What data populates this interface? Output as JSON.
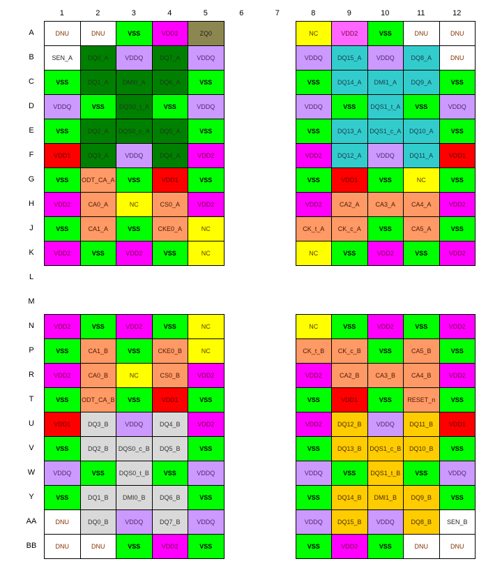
{
  "columns": [
    "1",
    "2",
    "3",
    "4",
    "5",
    "6",
    "7",
    "8",
    "9",
    "10",
    "11",
    "12"
  ],
  "pin_types": {
    "VSS": {
      "bg": "#00ff00",
      "fg": "#000000",
      "bold": true
    },
    "VDD1": {
      "bg": "#ff0000",
      "fg": "#6b0000"
    },
    "VDD2": {
      "bg": "#ff00ff",
      "fg": "#7a0040"
    },
    "VDD2_light": {
      "bg": "#ff66ff",
      "fg": "#7a0040"
    },
    "VDDQ": {
      "bg": "#cc99ff",
      "fg": "#4b2a6e"
    },
    "NC": {
      "bg": "#ffff00",
      "fg": "#5a3a00"
    },
    "DNU": {
      "bg": "#ffffff",
      "fg": "#803300"
    },
    "SEN": {
      "bg": "#ffffff",
      "fg": "#222222"
    },
    "ZQ": {
      "bg": "#8c8750",
      "fg": "#222222"
    },
    "CA": {
      "bg": "#ff9966",
      "fg": "#4a1a00"
    },
    "DQA_L": {
      "bg": "#008000",
      "fg": "#1a3a1a"
    },
    "DQA_R": {
      "bg": "#33cccc",
      "fg": "#1a3a4a"
    },
    "DQB_L": {
      "bg": "#d9d9d9",
      "fg": "#333333"
    },
    "DQB_R": {
      "bg": "#ffcc00",
      "fg": "#4a2a00"
    }
  },
  "rows": [
    {
      "label": "A",
      "left": [
        [
          "DNU",
          "DNU"
        ],
        [
          "DNU",
          "DNU"
        ],
        [
          "VSS",
          "VSS"
        ],
        [
          "VDD2",
          "VDD2"
        ],
        [
          "ZQ0",
          "ZQ"
        ]
      ],
      "right": [
        [
          "NC",
          "NC"
        ],
        [
          "VDD2",
          "VDD2_light"
        ],
        [
          "VSS",
          "VSS"
        ],
        [
          "DNU",
          "DNU"
        ],
        [
          "DNU",
          "DNU"
        ]
      ]
    },
    {
      "label": "B",
      "left": [
        [
          "SEN_A",
          "SEN"
        ],
        [
          "DQ0_A",
          "DQA_L"
        ],
        [
          "VDDQ",
          "VDDQ"
        ],
        [
          "DQ7_A",
          "DQA_L"
        ],
        [
          "VDDQ",
          "VDDQ"
        ]
      ],
      "right": [
        [
          "VDDQ",
          "VDDQ"
        ],
        [
          "DQ15_A",
          "DQA_R"
        ],
        [
          "VDDQ",
          "VDDQ"
        ],
        [
          "DQ8_A",
          "DQA_R"
        ],
        [
          "DNU",
          "DNU"
        ]
      ]
    },
    {
      "label": "C",
      "left": [
        [
          "VSS",
          "VSS"
        ],
        [
          "DQ1_A",
          "DQA_L"
        ],
        [
          "DMI0_A",
          "DQA_L"
        ],
        [
          "DQ6_A",
          "DQA_L"
        ],
        [
          "VSS",
          "VSS"
        ]
      ],
      "right": [
        [
          "VSS",
          "VSS"
        ],
        [
          "DQ14_A",
          "DQA_R"
        ],
        [
          "DMI1_A",
          "DQA_R"
        ],
        [
          "DQ9_A",
          "DQA_R"
        ],
        [
          "VSS",
          "VSS"
        ]
      ]
    },
    {
      "label": "D",
      "left": [
        [
          "VDDQ",
          "VDDQ"
        ],
        [
          "VSS",
          "VSS"
        ],
        [
          "DQS0_t_A",
          "DQA_L"
        ],
        [
          "VSS",
          "VSS"
        ],
        [
          "VDDQ",
          "VDDQ"
        ]
      ],
      "right": [
        [
          "VDDQ",
          "VDDQ"
        ],
        [
          "VSS",
          "VSS"
        ],
        [
          "DQS1_t_A",
          "DQA_R"
        ],
        [
          "VSS",
          "VSS"
        ],
        [
          "VDDQ",
          "VDDQ"
        ]
      ]
    },
    {
      "label": "E",
      "left": [
        [
          "VSS",
          "VSS"
        ],
        [
          "DQ2_A",
          "DQA_L"
        ],
        [
          "DQS0_c_A",
          "DQA_L"
        ],
        [
          "DQ5_A",
          "DQA_L"
        ],
        [
          "VSS",
          "VSS"
        ]
      ],
      "right": [
        [
          "VSS",
          "VSS"
        ],
        [
          "DQ13_A",
          "DQA_R"
        ],
        [
          "DQS1_c_A",
          "DQA_R"
        ],
        [
          "DQ10_A",
          "DQA_R"
        ],
        [
          "VSS",
          "VSS"
        ]
      ]
    },
    {
      "label": "F",
      "left": [
        [
          "VDD1",
          "VDD1"
        ],
        [
          "DQ3_A",
          "DQA_L"
        ],
        [
          "VDDQ",
          "VDDQ"
        ],
        [
          "DQ4_A",
          "DQA_L"
        ],
        [
          "VDD2",
          "VDD2"
        ]
      ],
      "right": [
        [
          "VDD2",
          "VDD2"
        ],
        [
          "DQ12_A",
          "DQA_R"
        ],
        [
          "VDDQ",
          "VDDQ"
        ],
        [
          "DQ11_A",
          "DQA_R"
        ],
        [
          "VDD1",
          "VDD1"
        ]
      ]
    },
    {
      "label": "G",
      "left": [
        [
          "VSS",
          "VSS"
        ],
        [
          "ODT_CA_A",
          "CA"
        ],
        [
          "VSS",
          "VSS"
        ],
        [
          "VDD1",
          "VDD1"
        ],
        [
          "VSS",
          "VSS"
        ]
      ],
      "right": [
        [
          "VSS",
          "VSS"
        ],
        [
          "VDD1",
          "VDD1"
        ],
        [
          "VSS",
          "VSS"
        ],
        [
          "NC",
          "NC"
        ],
        [
          "VSS",
          "VSS"
        ]
      ]
    },
    {
      "label": "H",
      "left": [
        [
          "VDD2",
          "VDD2"
        ],
        [
          "CA0_A",
          "CA"
        ],
        [
          "NC",
          "NC"
        ],
        [
          "CS0_A",
          "CA"
        ],
        [
          "VDD2",
          "VDD2"
        ]
      ],
      "right": [
        [
          "VDD2",
          "VDD2"
        ],
        [
          "CA2_A",
          "CA"
        ],
        [
          "CA3_A",
          "CA"
        ],
        [
          "CA4_A",
          "CA"
        ],
        [
          "VDD2",
          "VDD2"
        ]
      ]
    },
    {
      "label": "J",
      "left": [
        [
          "VSS",
          "VSS"
        ],
        [
          "CA1_A",
          "CA"
        ],
        [
          "VSS",
          "VSS"
        ],
        [
          "CKE0_A",
          "CA"
        ],
        [
          "NC",
          "NC"
        ]
      ],
      "right": [
        [
          "CK_t_A",
          "CA"
        ],
        [
          "CK_c_A",
          "CA"
        ],
        [
          "VSS",
          "VSS"
        ],
        [
          "CA5_A",
          "CA"
        ],
        [
          "VSS",
          "VSS"
        ]
      ]
    },
    {
      "label": "K",
      "left": [
        [
          "VDD2",
          "VDD2"
        ],
        [
          "VSS",
          "VSS"
        ],
        [
          "VDD2",
          "VDD2"
        ],
        [
          "VSS",
          "VSS"
        ],
        [
          "NC",
          "NC"
        ]
      ],
      "right": [
        [
          "NC",
          "NC"
        ],
        [
          "VSS",
          "VSS"
        ],
        [
          "VDD2",
          "VDD2"
        ],
        [
          "VSS",
          "VSS"
        ],
        [
          "VDD2",
          "VDD2"
        ]
      ]
    },
    {
      "label": "L",
      "left": [],
      "right": []
    },
    {
      "label": "M",
      "left": [],
      "right": []
    },
    {
      "label": "N",
      "left": [
        [
          "VDD2",
          "VDD2"
        ],
        [
          "VSS",
          "VSS"
        ],
        [
          "VDD2",
          "VDD2"
        ],
        [
          "VSS",
          "VSS"
        ],
        [
          "NC",
          "NC"
        ]
      ],
      "right": [
        [
          "NC",
          "NC"
        ],
        [
          "VSS",
          "VSS"
        ],
        [
          "VDD2",
          "VDD2"
        ],
        [
          "VSS",
          "VSS"
        ],
        [
          "VDD2",
          "VDD2"
        ]
      ]
    },
    {
      "label": "P",
      "left": [
        [
          "VSS",
          "VSS"
        ],
        [
          "CA1_B",
          "CA"
        ],
        [
          "VSS",
          "VSS"
        ],
        [
          "CKE0_B",
          "CA"
        ],
        [
          "NC",
          "NC"
        ]
      ],
      "right": [
        [
          "CK_t_B",
          "CA"
        ],
        [
          "CK_c_B",
          "CA"
        ],
        [
          "VSS",
          "VSS"
        ],
        [
          "CA5_B",
          "CA"
        ],
        [
          "VSS",
          "VSS"
        ]
      ]
    },
    {
      "label": "R",
      "left": [
        [
          "VDD2",
          "VDD2"
        ],
        [
          "CA0_B",
          "CA"
        ],
        [
          "NC",
          "NC"
        ],
        [
          "CS0_B",
          "CA"
        ],
        [
          "VDD2",
          "VDD2"
        ]
      ],
      "right": [
        [
          "VDD2",
          "VDD2"
        ],
        [
          "CA2_B",
          "CA"
        ],
        [
          "CA3_B",
          "CA"
        ],
        [
          "CA4_B",
          "CA"
        ],
        [
          "VDD2",
          "VDD2"
        ]
      ]
    },
    {
      "label": "T",
      "left": [
        [
          "VSS",
          "VSS"
        ],
        [
          "ODT_CA_B",
          "CA"
        ],
        [
          "VSS",
          "VSS"
        ],
        [
          "VDD1",
          "VDD1"
        ],
        [
          "VSS",
          "VSS"
        ]
      ],
      "right": [
        [
          "VSS",
          "VSS"
        ],
        [
          "VDD1",
          "VDD1"
        ],
        [
          "VSS",
          "VSS"
        ],
        [
          "RESET_n",
          "CA"
        ],
        [
          "VSS",
          "VSS"
        ]
      ]
    },
    {
      "label": "U",
      "left": [
        [
          "VDD1",
          "VDD1"
        ],
        [
          "DQ3_B",
          "DQB_L"
        ],
        [
          "VDDQ",
          "VDDQ"
        ],
        [
          "DQ4_B",
          "DQB_L"
        ],
        [
          "VDD2",
          "VDD2"
        ]
      ],
      "right": [
        [
          "VDD2",
          "VDD2"
        ],
        [
          "DQ12_B",
          "DQB_R"
        ],
        [
          "VDDQ",
          "VDDQ"
        ],
        [
          "DQ11_B",
          "DQB_R"
        ],
        [
          "VDD1",
          "VDD1"
        ]
      ]
    },
    {
      "label": "V",
      "left": [
        [
          "VSS",
          "VSS"
        ],
        [
          "DQ2_B",
          "DQB_L"
        ],
        [
          "DQS0_c_B",
          "DQB_L"
        ],
        [
          "DQ5_B",
          "DQB_L"
        ],
        [
          "VSS",
          "VSS"
        ]
      ],
      "right": [
        [
          "VSS",
          "VSS"
        ],
        [
          "DQ13_B",
          "DQB_R"
        ],
        [
          "DQS1_c_B",
          "DQB_R"
        ],
        [
          "DQ10_B",
          "DQB_R"
        ],
        [
          "VSS",
          "VSS"
        ]
      ]
    },
    {
      "label": "W",
      "left": [
        [
          "VDDQ",
          "VDDQ"
        ],
        [
          "VSS",
          "VSS"
        ],
        [
          "DQS0_t_B",
          "DQB_L"
        ],
        [
          "VSS",
          "VSS"
        ],
        [
          "VDDQ",
          "VDDQ"
        ]
      ],
      "right": [
        [
          "VDDQ",
          "VDDQ"
        ],
        [
          "VSS",
          "VSS"
        ],
        [
          "DQS1_t_B",
          "DQB_R"
        ],
        [
          "VSS",
          "VSS"
        ],
        [
          "VDDQ",
          "VDDQ"
        ]
      ]
    },
    {
      "label": "Y",
      "left": [
        [
          "VSS",
          "VSS"
        ],
        [
          "DQ1_B",
          "DQB_L"
        ],
        [
          "DMI0_B",
          "DQB_L"
        ],
        [
          "DQ6_B",
          "DQB_L"
        ],
        [
          "VSS",
          "VSS"
        ]
      ],
      "right": [
        [
          "VSS",
          "VSS"
        ],
        [
          "DQ14_B",
          "DQB_R"
        ],
        [
          "DMI1_B",
          "DQB_R"
        ],
        [
          "DQ9_B",
          "DQB_R"
        ],
        [
          "VSS",
          "VSS"
        ]
      ]
    },
    {
      "label": "AA",
      "left": [
        [
          "DNU",
          "DNU"
        ],
        [
          "DQ0_B",
          "DQB_L"
        ],
        [
          "VDDQ",
          "VDDQ"
        ],
        [
          "DQ7_B",
          "DQB_L"
        ],
        [
          "VDDQ",
          "VDDQ"
        ]
      ],
      "right": [
        [
          "VDDQ",
          "VDDQ"
        ],
        [
          "DQ15_B",
          "DQB_R"
        ],
        [
          "VDDQ",
          "VDDQ"
        ],
        [
          "DQ8_B",
          "DQB_R"
        ],
        [
          "SEN_B",
          "SEN"
        ]
      ]
    },
    {
      "label": "BB",
      "left": [
        [
          "DNU",
          "DNU"
        ],
        [
          "DNU",
          "DNU"
        ],
        [
          "VSS",
          "VSS"
        ],
        [
          "VDD2",
          "VDD2"
        ],
        [
          "VSS",
          "VSS"
        ]
      ],
      "right": [
        [
          "VSS",
          "VSS"
        ],
        [
          "VDD2",
          "VDD2"
        ],
        [
          "VSS",
          "VSS"
        ],
        [
          "DNU",
          "DNU"
        ],
        [
          "DNU",
          "DNU"
        ]
      ]
    }
  ]
}
